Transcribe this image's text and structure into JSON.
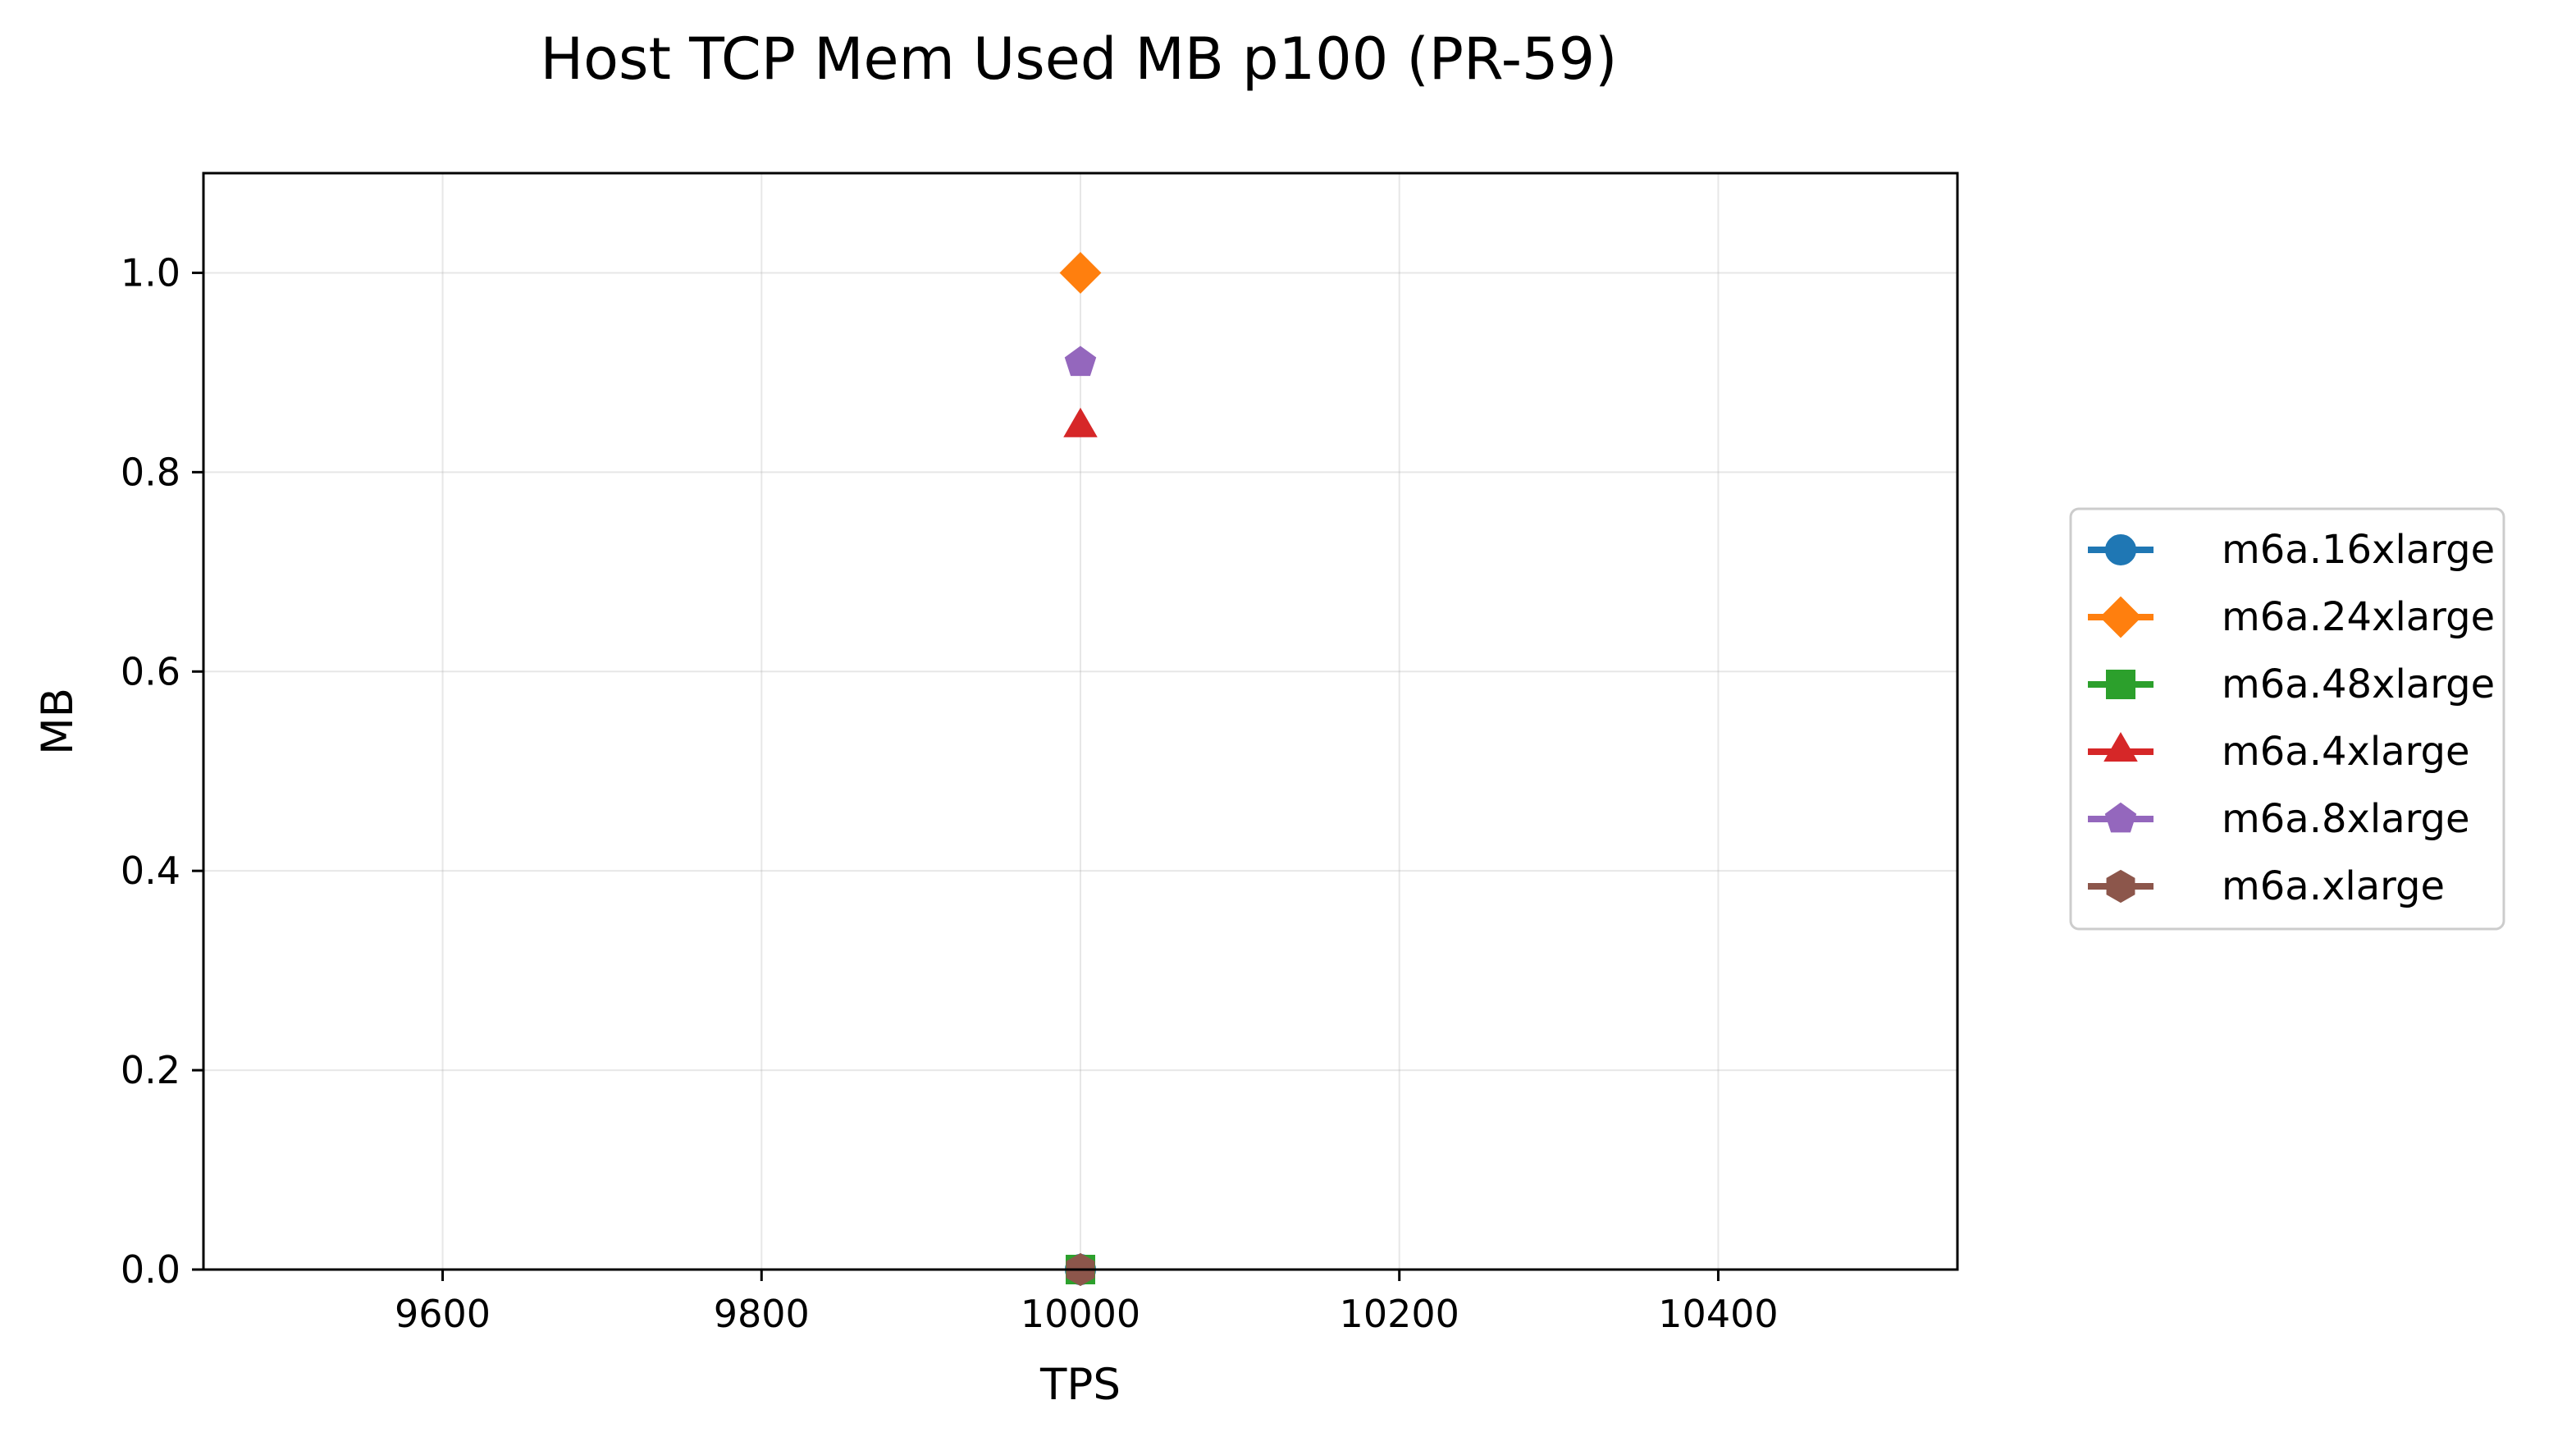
{
  "chart_data": {
    "type": "line",
    "title": "Host TCP Mem Used MB p100 (PR-59)",
    "xlabel": "TPS",
    "ylabel": "MB",
    "xlim": [
      9450,
      10550
    ],
    "ylim": [
      0,
      1.1
    ],
    "x_ticks": [
      9600,
      9800,
      10000,
      10200,
      10400
    ],
    "x_tick_labels": [
      "9600",
      "9800",
      "10000",
      "10200",
      "10400"
    ],
    "y_ticks": [
      0,
      0.2,
      0.4,
      0.6,
      0.8,
      1.0
    ],
    "y_tick_labels": [
      "0.0",
      "0.2",
      "0.4",
      "0.6",
      "0.8",
      "1.0"
    ],
    "grid": true,
    "legend_position": "right",
    "series": [
      {
        "name": "m6a.16xlarge",
        "color": "#1f77b4",
        "marker": "circle",
        "points": [
          {
            "x": 10000,
            "y": 0
          }
        ]
      },
      {
        "name": "m6a.24xlarge",
        "color": "#ff7f0e",
        "marker": "diamond",
        "points": [
          {
            "x": 10000,
            "y": 1.0
          }
        ]
      },
      {
        "name": "m6a.48xlarge",
        "color": "#2ca02c",
        "marker": "square",
        "points": [
          {
            "x": 10000,
            "y": 0
          }
        ]
      },
      {
        "name": "m6a.4xlarge",
        "color": "#d62728",
        "marker": "triangle",
        "points": [
          {
            "x": 10000,
            "y": 0.845
          }
        ]
      },
      {
        "name": "m6a.8xlarge",
        "color": "#9467bd",
        "marker": "pentagon",
        "points": [
          {
            "x": 10000,
            "y": 0.91
          }
        ]
      },
      {
        "name": "m6a.xlarge",
        "color": "#8c564b",
        "marker": "hexagon",
        "points": [
          {
            "x": 10000,
            "y": 0
          }
        ]
      }
    ]
  }
}
